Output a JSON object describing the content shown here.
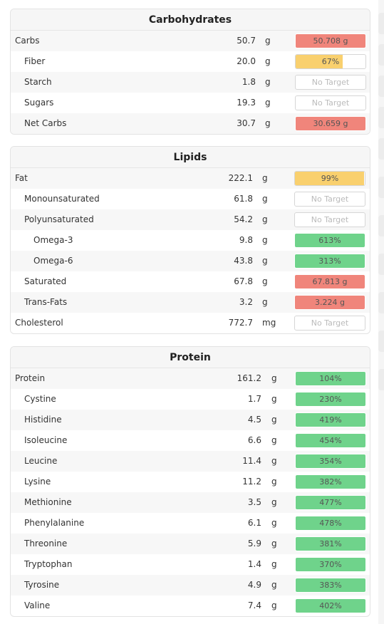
{
  "colors": {
    "red": "#f0857b",
    "yellow": "#f9d06e",
    "green": "#6fd38b"
  },
  "sections": [
    {
      "id": "carbohydrates",
      "title": "Carbohydrates",
      "rows": [
        {
          "name": "Carbs",
          "level": 0,
          "value": "50.7",
          "unit": "g",
          "target": "50.708 g",
          "status": "red",
          "fill": 1.0
        },
        {
          "name": "Fiber",
          "level": 1,
          "value": "20.0",
          "unit": "g",
          "target": "67%",
          "status": "yellow",
          "fill": 0.67
        },
        {
          "name": "Starch",
          "level": 1,
          "value": "1.8",
          "unit": "g",
          "target": "No Target",
          "status": "none",
          "fill": 0
        },
        {
          "name": "Sugars",
          "level": 1,
          "value": "19.3",
          "unit": "g",
          "target": "No Target",
          "status": "none",
          "fill": 0
        },
        {
          "name": "Net Carbs",
          "level": 1,
          "value": "30.7",
          "unit": "g",
          "target": "30.659 g",
          "status": "red",
          "fill": 1.0
        }
      ]
    },
    {
      "id": "lipids",
      "title": "Lipids",
      "rows": [
        {
          "name": "Fat",
          "level": 0,
          "value": "222.1",
          "unit": "g",
          "target": "99%",
          "status": "yellow",
          "fill": 0.99
        },
        {
          "name": "Monounsaturated",
          "level": 1,
          "value": "61.8",
          "unit": "g",
          "target": "No Target",
          "status": "none",
          "fill": 0
        },
        {
          "name": "Polyunsaturated",
          "level": 1,
          "value": "54.2",
          "unit": "g",
          "target": "No Target",
          "status": "none",
          "fill": 0
        },
        {
          "name": "Omega-3",
          "level": 2,
          "value": "9.8",
          "unit": "g",
          "target": "613%",
          "status": "green",
          "fill": 1.0
        },
        {
          "name": "Omega-6",
          "level": 2,
          "value": "43.8",
          "unit": "g",
          "target": "313%",
          "status": "green",
          "fill": 1.0
        },
        {
          "name": "Saturated",
          "level": 1,
          "value": "67.8",
          "unit": "g",
          "target": "67.813 g",
          "status": "red",
          "fill": 1.0
        },
        {
          "name": "Trans-Fats",
          "level": 1,
          "value": "3.2",
          "unit": "g",
          "target": "3.224 g",
          "status": "red",
          "fill": 1.0
        },
        {
          "name": "Cholesterol",
          "level": 0,
          "value": "772.7",
          "unit": "mg",
          "target": "No Target",
          "status": "none",
          "fill": 0
        }
      ]
    },
    {
      "id": "protein",
      "title": "Protein",
      "rows": [
        {
          "name": "Protein",
          "level": 0,
          "value": "161.2",
          "unit": "g",
          "target": "104%",
          "status": "green",
          "fill": 1.0
        },
        {
          "name": "Cystine",
          "level": 1,
          "value": "1.7",
          "unit": "g",
          "target": "230%",
          "status": "green",
          "fill": 1.0
        },
        {
          "name": "Histidine",
          "level": 1,
          "value": "4.5",
          "unit": "g",
          "target": "419%",
          "status": "green",
          "fill": 1.0
        },
        {
          "name": "Isoleucine",
          "level": 1,
          "value": "6.6",
          "unit": "g",
          "target": "454%",
          "status": "green",
          "fill": 1.0
        },
        {
          "name": "Leucine",
          "level": 1,
          "value": "11.4",
          "unit": "g",
          "target": "354%",
          "status": "green",
          "fill": 1.0
        },
        {
          "name": "Lysine",
          "level": 1,
          "value": "11.2",
          "unit": "g",
          "target": "382%",
          "status": "green",
          "fill": 1.0
        },
        {
          "name": "Methionine",
          "level": 1,
          "value": "3.5",
          "unit": "g",
          "target": "477%",
          "status": "green",
          "fill": 1.0
        },
        {
          "name": "Phenylalanine",
          "level": 1,
          "value": "6.1",
          "unit": "g",
          "target": "478%",
          "status": "green",
          "fill": 1.0
        },
        {
          "name": "Threonine",
          "level": 1,
          "value": "5.9",
          "unit": "g",
          "target": "381%",
          "status": "green",
          "fill": 1.0
        },
        {
          "name": "Tryptophan",
          "level": 1,
          "value": "1.4",
          "unit": "g",
          "target": "370%",
          "status": "green",
          "fill": 1.0
        },
        {
          "name": "Tyrosine",
          "level": 1,
          "value": "4.9",
          "unit": "g",
          "target": "383%",
          "status": "green",
          "fill": 1.0
        },
        {
          "name": "Valine",
          "level": 1,
          "value": "7.4",
          "unit": "g",
          "target": "402%",
          "status": "green",
          "fill": 1.0
        }
      ]
    }
  ]
}
